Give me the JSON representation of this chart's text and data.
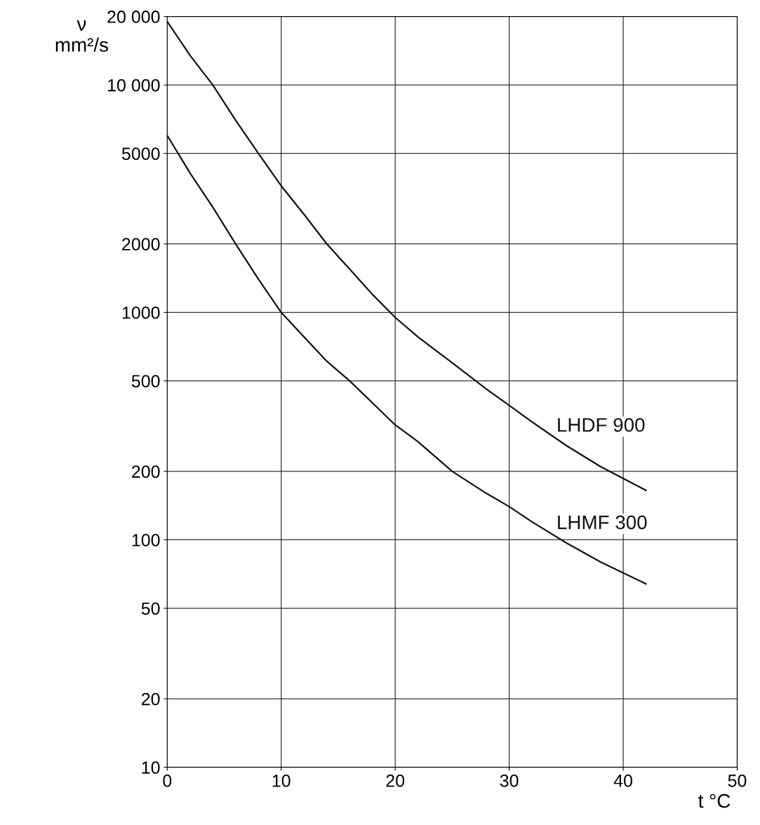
{
  "chart_data": {
    "type": "line",
    "xlabel": "t °C",
    "ylabel": "ν\nmm²/s",
    "log": "y",
    "xlim": [
      0,
      50
    ],
    "xticks": [
      0,
      10,
      20,
      30,
      40,
      50
    ],
    "ylim": [
      10,
      20000
    ],
    "yticks": [
      10,
      20,
      50,
      100,
      200,
      500,
      1000,
      2000,
      5000,
      {
        "value": 10000,
        "label": "10 000"
      },
      {
        "value": 20000,
        "label": "20 000"
      }
    ],
    "grid": true,
    "marker": "none",
    "line_style": "solid",
    "series": [
      {
        "name": "LHDF 900",
        "color": "#111111",
        "x": [
          0,
          2,
          4,
          6,
          8,
          10,
          12,
          14,
          16,
          18,
          20,
          22,
          25,
          28,
          30,
          32,
          35,
          38,
          42
        ],
        "values": [
          19000,
          13500,
          10000,
          7000,
          5000,
          3600,
          2700,
          2000,
          1550,
          1200,
          950,
          780,
          600,
          460,
          390,
          330,
          260,
          210,
          165
        ]
      },
      {
        "name": "LHMF 300",
        "color": "#111111",
        "x": [
          0,
          2,
          4,
          6,
          8,
          10,
          12,
          14,
          16,
          18,
          20,
          22,
          25,
          28,
          30,
          32,
          35,
          38,
          42
        ],
        "values": [
          6000,
          4100,
          2900,
          2000,
          1400,
          1000,
          780,
          610,
          500,
          400,
          320,
          270,
          200,
          160,
          140,
          120,
          97,
          80,
          64
        ]
      }
    ],
    "legend": false
  }
}
